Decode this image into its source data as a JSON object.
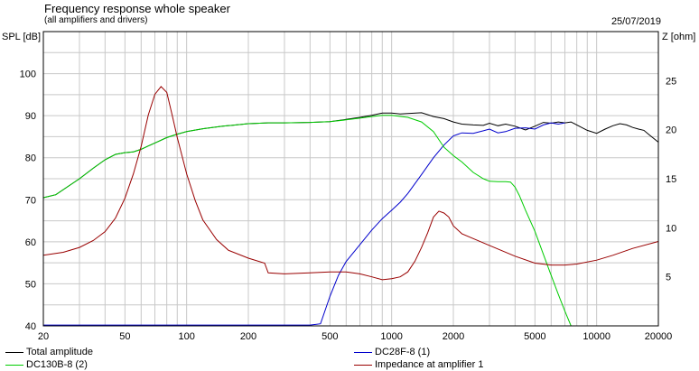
{
  "header": {
    "title": "Frequency response whole speaker",
    "subtitle": "(all amplifiers and drivers)",
    "date": "25/07/2019"
  },
  "chart_data": {
    "type": "line",
    "title": "Frequency response whole speaker",
    "subtitle": "(all amplifiers and drivers)",
    "xscale": "log",
    "xlim": [
      20,
      20000
    ],
    "ylabel": "SPL [dB]",
    "ylim": [
      40,
      110
    ],
    "y2label": "Z [ohm]",
    "y2lim": [
      0,
      30
    ],
    "grid": true,
    "legend_placement": "bottom",
    "x_ticks": [
      20,
      50,
      100,
      200,
      500,
      1000,
      2000,
      5000,
      10000,
      20000
    ],
    "x_tick_labels": [
      "20",
      "50",
      "100",
      "200",
      "500",
      "1000",
      "2000",
      "5000",
      "10000",
      "20000"
    ],
    "y_ticks": [
      40,
      50,
      60,
      70,
      80,
      90,
      100
    ],
    "y_tick_labels": [
      "40",
      "50",
      "60",
      "70",
      "80",
      "90",
      "100"
    ],
    "y2_ticks": [
      5,
      10,
      15,
      20,
      25
    ],
    "y2_tick_labels": [
      "5",
      "10",
      "15",
      "20",
      "25"
    ],
    "series": [
      {
        "name": "Total amplitude",
        "color": "#000000",
        "axis": "left",
        "points": [
          [
            20,
            70.5
          ],
          [
            23,
            71.2
          ],
          [
            27,
            73.5
          ],
          [
            30,
            75
          ],
          [
            35,
            77.5
          ],
          [
            40,
            79.5
          ],
          [
            45,
            80.8
          ],
          [
            50,
            81.2
          ],
          [
            55,
            81.4
          ],
          [
            60,
            82
          ],
          [
            65,
            82.8
          ],
          [
            70,
            83.5
          ],
          [
            80,
            84.8
          ],
          [
            90,
            85.6
          ],
          [
            100,
            86.2
          ],
          [
            120,
            86.9
          ],
          [
            150,
            87.5
          ],
          [
            200,
            88.1
          ],
          [
            250,
            88.3
          ],
          [
            300,
            88.3
          ],
          [
            400,
            88.4
          ],
          [
            500,
            88.6
          ],
          [
            600,
            89.1
          ],
          [
            700,
            89.6
          ],
          [
            800,
            90.1
          ],
          [
            900,
            90.6
          ],
          [
            1000,
            90.6
          ],
          [
            1100,
            90.4
          ],
          [
            1200,
            90.5
          ],
          [
            1400,
            90.7
          ],
          [
            1600,
            89.8
          ],
          [
            1800,
            89.3
          ],
          [
            2000,
            88.5
          ],
          [
            2200,
            88
          ],
          [
            2500,
            87.8
          ],
          [
            2800,
            87.7
          ],
          [
            3000,
            88.2
          ],
          [
            3300,
            87.6
          ],
          [
            3600,
            88
          ],
          [
            4000,
            87.5
          ],
          [
            4500,
            86.6
          ],
          [
            5000,
            87.5
          ],
          [
            5500,
            88.4
          ],
          [
            6000,
            88.2
          ],
          [
            6500,
            88.5
          ],
          [
            7000,
            88.3
          ],
          [
            7500,
            88.5
          ],
          [
            8000,
            87.8
          ],
          [
            9000,
            86.5
          ],
          [
            10000,
            85.8
          ],
          [
            11000,
            86.8
          ],
          [
            12000,
            87.6
          ],
          [
            13000,
            88.1
          ],
          [
            14000,
            87.8
          ],
          [
            15000,
            87.2
          ],
          [
            16000,
            86.8
          ],
          [
            17000,
            86.5
          ],
          [
            18000,
            85.5
          ],
          [
            20000,
            83.7
          ]
        ]
      },
      {
        "name": "DC28F-8 (1)",
        "color": "#0000cc",
        "axis": "left",
        "points": [
          [
            20,
            40.2
          ],
          [
            100,
            40.2
          ],
          [
            200,
            40.2
          ],
          [
            400,
            40.2
          ],
          [
            450,
            40.5
          ],
          [
            500,
            47
          ],
          [
            550,
            52
          ],
          [
            600,
            55.3
          ],
          [
            700,
            59.3
          ],
          [
            800,
            62.8
          ],
          [
            900,
            65.5
          ],
          [
            1000,
            67.5
          ],
          [
            1100,
            69.4
          ],
          [
            1200,
            71.5
          ],
          [
            1400,
            76
          ],
          [
            1600,
            80
          ],
          [
            1800,
            83
          ],
          [
            2000,
            85.2
          ],
          [
            2200,
            85.9
          ],
          [
            2500,
            85.8
          ],
          [
            2800,
            86.4
          ],
          [
            3000,
            86.8
          ],
          [
            3300,
            85.9
          ],
          [
            3600,
            86.2
          ],
          [
            4000,
            87
          ],
          [
            4500,
            87.1
          ],
          [
            5000,
            86.8
          ],
          [
            5500,
            87.8
          ],
          [
            6000,
            88.3
          ],
          [
            6500,
            88
          ],
          [
            7000,
            88.3
          ]
        ]
      },
      {
        "name": "DC130B-8 (2)",
        "color": "#00cc00",
        "axis": "left",
        "points": [
          [
            20,
            70.5
          ],
          [
            23,
            71.2
          ],
          [
            27,
            73.5
          ],
          [
            30,
            75
          ],
          [
            35,
            77.5
          ],
          [
            40,
            79.5
          ],
          [
            45,
            80.8
          ],
          [
            50,
            81.2
          ],
          [
            55,
            81.4
          ],
          [
            60,
            82
          ],
          [
            65,
            82.8
          ],
          [
            70,
            83.5
          ],
          [
            80,
            84.8
          ],
          [
            90,
            85.6
          ],
          [
            100,
            86.2
          ],
          [
            120,
            86.9
          ],
          [
            150,
            87.5
          ],
          [
            200,
            88.1
          ],
          [
            250,
            88.3
          ],
          [
            300,
            88.3
          ],
          [
            400,
            88.4
          ],
          [
            500,
            88.6
          ],
          [
            600,
            89
          ],
          [
            700,
            89.4
          ],
          [
            800,
            89.8
          ],
          [
            900,
            90.1
          ],
          [
            1000,
            90.1
          ],
          [
            1200,
            89.6
          ],
          [
            1400,
            88.5
          ],
          [
            1600,
            86.2
          ],
          [
            1800,
            82.5
          ],
          [
            2000,
            80.5
          ],
          [
            2200,
            79
          ],
          [
            2500,
            76.5
          ],
          [
            2800,
            75
          ],
          [
            3000,
            74.4
          ],
          [
            3300,
            74.3
          ],
          [
            3600,
            74.3
          ],
          [
            3800,
            74.2
          ],
          [
            4000,
            73
          ],
          [
            4200,
            71
          ],
          [
            4500,
            67.5
          ],
          [
            5000,
            62.5
          ],
          [
            5500,
            57
          ],
          [
            6000,
            52
          ],
          [
            6500,
            47.5
          ],
          [
            7000,
            43.5
          ],
          [
            7500,
            40
          ],
          [
            8000,
            40
          ],
          [
            10000,
            40
          ],
          [
            20000,
            40
          ]
        ]
      },
      {
        "name": "Impedance at amplifier 1",
        "color": "#990000",
        "axis": "right",
        "points": [
          [
            20,
            7.2
          ],
          [
            25,
            7.5
          ],
          [
            30,
            8
          ],
          [
            35,
            8.7
          ],
          [
            40,
            9.6
          ],
          [
            45,
            11
          ],
          [
            50,
            13
          ],
          [
            55,
            15.5
          ],
          [
            60,
            18.3
          ],
          [
            65,
            21.5
          ],
          [
            70,
            23.6
          ],
          [
            75,
            24.4
          ],
          [
            80,
            23.8
          ],
          [
            85,
            21.5
          ],
          [
            90,
            19.2
          ],
          [
            100,
            15.5
          ],
          [
            110,
            12.8
          ],
          [
            120,
            10.8
          ],
          [
            140,
            8.8
          ],
          [
            160,
            7.7
          ],
          [
            200,
            6.9
          ],
          [
            240,
            6.4
          ],
          [
            250,
            5.4
          ],
          [
            300,
            5.3
          ],
          [
            400,
            5.4
          ],
          [
            500,
            5.5
          ],
          [
            600,
            5.5
          ],
          [
            700,
            5.3
          ],
          [
            800,
            5
          ],
          [
            900,
            4.7
          ],
          [
            1000,
            4.8
          ],
          [
            1100,
            5
          ],
          [
            1200,
            5.5
          ],
          [
            1300,
            6.6
          ],
          [
            1400,
            8
          ],
          [
            1500,
            9.5
          ],
          [
            1600,
            11.1
          ],
          [
            1700,
            11.7
          ],
          [
            1800,
            11.5
          ],
          [
            1900,
            11.1
          ],
          [
            2000,
            10.2
          ],
          [
            2200,
            9.4
          ],
          [
            2500,
            8.9
          ],
          [
            3000,
            8.2
          ],
          [
            4000,
            7.1
          ],
          [
            5000,
            6.4
          ],
          [
            6000,
            6.2
          ],
          [
            7000,
            6.2
          ],
          [
            8000,
            6.3
          ],
          [
            10000,
            6.7
          ],
          [
            12000,
            7.2
          ],
          [
            15000,
            7.9
          ],
          [
            20000,
            8.6
          ]
        ]
      }
    ]
  }
}
